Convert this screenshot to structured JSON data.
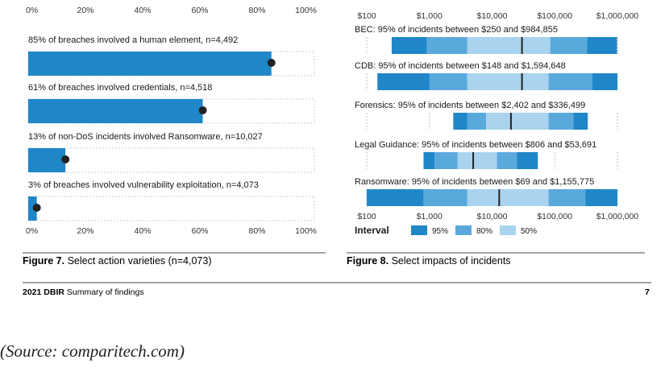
{
  "colors": {
    "accent": "#1f87c8",
    "band_95": "#1f87c8",
    "band_80": "#5aa9dc",
    "band_50": "#a9d3ee",
    "dot": "#222222",
    "divider": "#444444",
    "text": "#1a1a1a"
  },
  "figure7": {
    "caption_bold": "Figure 7.",
    "caption_text": " Select action varieties (n=4,073)",
    "x_ticks": [
      "0%",
      "20%",
      "40%",
      "60%",
      "80%",
      "100%"
    ],
    "axis_range": [
      0,
      100
    ]
  },
  "figure8": {
    "caption_bold": "Figure 8.",
    "caption_text": " Select impacts of incidents",
    "x_ticks": [
      "$100",
      "$1,000",
      "$10,000",
      "$100,000",
      "$1,000,000"
    ],
    "tick_values": [
      100,
      1000,
      10000,
      100000,
      1000000
    ],
    "scale": "log",
    "legend": {
      "title": "Interval",
      "items": [
        {
          "label": "95%",
          "color": "#1f87c8"
        },
        {
          "label": "80%",
          "color": "#5aa9dc"
        },
        {
          "label": "50%",
          "color": "#a9d3ee"
        }
      ]
    }
  },
  "footer": {
    "report_bold": "2021 DBIR",
    "report_text": " Summary of findings",
    "page_number": "7"
  },
  "source_note": "(Source: comparitech.com)",
  "chart_data": [
    {
      "type": "bar",
      "orientation": "horizontal",
      "xlim": [
        0,
        100
      ],
      "x_ticks": [
        "0%",
        "20%",
        "40%",
        "60%",
        "80%",
        "100%"
      ],
      "grid": false,
      "bars": [
        {
          "label": "85% of breaches involved a human element, n=4,492",
          "value": 85
        },
        {
          "label": "61% of breaches involved credentials, n=4,518",
          "value": 61
        },
        {
          "label": "13% of non-DoS incidents involved Ransomware, n=10,027",
          "value": 13
        },
        {
          "label": "3% of breaches involved vulnerability exploitation, n=4,073",
          "value": 3
        }
      ]
    },
    {
      "type": "interval",
      "x_scale": "log",
      "xlim": [
        100,
        1000000
      ],
      "x_ticks": [
        "$100",
        "$1,000",
        "$10,000",
        "$100,000",
        "$1,000,000"
      ],
      "legend_title": "Interval",
      "legend_position": "bottom-left",
      "rows": [
        {
          "label": "BEC: 95% of incidents between $250 and $984,855",
          "i95": [
            250,
            984855
          ],
          "i80": [
            900,
            330000
          ],
          "i50": [
            4000,
            85000
          ],
          "median": 30000
        },
        {
          "label": "CDB: 95% of incidents between $148 and $1,594,648",
          "i95": [
            148,
            1594648
          ],
          "i80": [
            1000,
            400000
          ],
          "i50": [
            4000,
            80000
          ],
          "median": 30000
        },
        {
          "label": "Forensics: 95% of incidents between $2,402 and $336,499",
          "i95": [
            2402,
            336499
          ],
          "i80": [
            4000,
            200000
          ],
          "i50": [
            8000,
            80000
          ],
          "median": 20000
        },
        {
          "label": "Legal Guidance: 95% of incidents between $806 and $53,691",
          "i95": [
            806,
            53691
          ],
          "i80": [
            1200,
            25000
          ],
          "i50": [
            2800,
            12000
          ],
          "median": 5000
        },
        {
          "label": "Ransomware: 95% of incidents between $69 and $1,155,775",
          "i95": [
            69,
            1155775
          ],
          "i80": [
            800,
            310000
          ],
          "i50": [
            4000,
            80000
          ],
          "median": 13000
        }
      ]
    }
  ]
}
